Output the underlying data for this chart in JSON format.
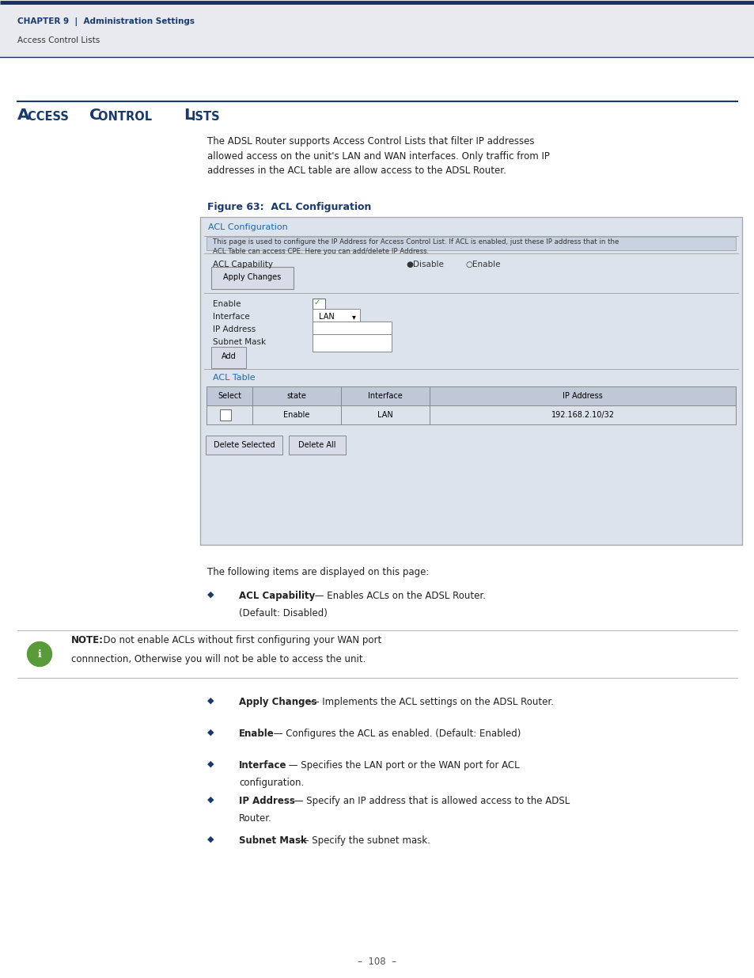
{
  "page_bg": "#ffffff",
  "header_bg": "#e8eaf0",
  "header_border_color": "#1a2f5e",
  "header_text_color": "#1a3a6b",
  "header_chapter": "CHAPTER 9  |  Administration Settings",
  "header_subtext": "Access Control Lists",
  "title_text": "Access Control Lists",
  "title_color": "#1a3a6b",
  "title_underline_color": "#1a3a6b",
  "body_text_color": "#222222",
  "intro_text": "The ADSL Router supports Access Control Lists that filter IP addresses\nallowed access on the unit's LAN and WAN interfaces. Only traffic from IP\naddresses in the ACL table are allow access to the ADSL Router.",
  "figure_label": "Figure 63:  ACL Configuration",
  "figure_label_color": "#1a3a6b",
  "panel_bg": "#dde3ed",
  "panel_border": "#aaaaaa",
  "panel_title": "ACL Configuration",
  "panel_title_color": "#2266aa",
  "panel_desc": "This page is used to configure the IP Address for Access Control List. If ACL is enabled, just these IP address that in the\nACL Table can access CPE. Here you can add/delete IP Address.",
  "acl_capability_label": "ACL Capability",
  "radio_disable": "●Disable",
  "radio_enable": "○Enable",
  "btn_apply": "Apply Changes",
  "field_enable": "Enable",
  "field_interface": "Interface",
  "field_ip": "IP Address",
  "field_subnet": "Subnet Mask",
  "btn_add": "Add",
  "acl_table_title": "ACL Table",
  "acl_table_title_color": "#2266aa",
  "table_headers": [
    "Select",
    "state",
    "Interface",
    "IP Address"
  ],
  "table_row": [
    "",
    "Enable",
    "LAN",
    "192.168.2.10/32"
  ],
  "btn_delete_selected": "Delete Selected",
  "btn_delete_all": "Delete All",
  "following_text": "The following items are displayed on this page:",
  "bullet_color": "#1a3a6b",
  "bullets": [
    {
      "bold": "ACL Capability",
      "text": " — Enables ACLs on the ADSL Router.\n(Default: Disabled)"
    },
    {
      "bold": "Apply Changes",
      "text": " — Implements the ACL settings on the ADSL Router."
    },
    {
      "bold": "Enable",
      "text": " — Configures the ACL as enabled. (Default: Enabled)"
    },
    {
      "bold": "Interface",
      "text": " — Specifies the LAN port or the WAN port for ACL\nconfiguration."
    },
    {
      "bold": "IP Address",
      "text": " — Specify an IP address that is allowed access to the ADSL\nRouter."
    },
    {
      "bold": "Subnet Mask",
      "text": " — Specify the subnet mask."
    }
  ],
  "note_bg": "#ffffff",
  "note_border": "#bbbbbb",
  "note_icon_color": "#5a9a3a",
  "note_text_bold": "NOTE:",
  "note_text_rest": "  Do not enable ACLs without first configuring your WAN port\nconnnection, Otherwise you will not be able to access the unit.",
  "page_number": "–  108  –"
}
